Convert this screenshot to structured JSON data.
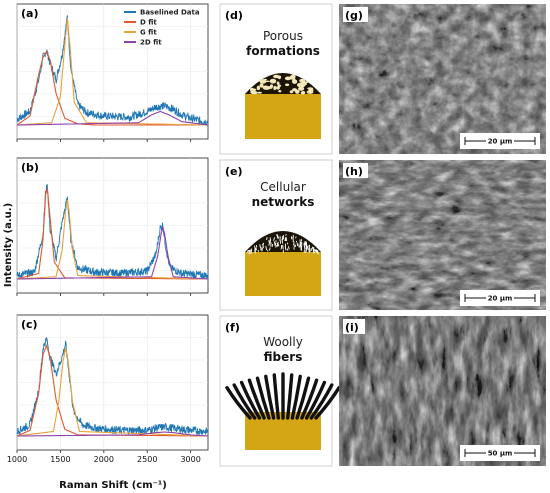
{
  "chart_data": [
    {
      "panel_label": "(a)",
      "type": "line",
      "xlim": [
        1000,
        3200
      ],
      "ticks": [
        "1000",
        "1500",
        "2000",
        "2500",
        "3000"
      ],
      "series": [
        {
          "name": "Baselined Data",
          "color": "#1f77b4",
          "x": [
            1000,
            1150,
            1250,
            1300,
            1340,
            1380,
            1450,
            1520,
            1580,
            1620,
            1700,
            1800,
            2000,
            2300,
            2500,
            2600,
            2700,
            2800,
            2900,
            3000,
            3100,
            3200
          ],
          "y": [
            0.05,
            0.12,
            0.4,
            0.6,
            0.66,
            0.55,
            0.4,
            0.62,
            0.96,
            0.5,
            0.18,
            0.11,
            0.08,
            0.07,
            0.12,
            0.16,
            0.17,
            0.14,
            0.09,
            0.06,
            0.04,
            0.03
          ]
        },
        {
          "name": "D fit",
          "color": "#e4572e",
          "x": [
            1000,
            1150,
            1250,
            1300,
            1340,
            1380,
            1450,
            1550,
            1700,
            1900,
            3200
          ],
          "y": [
            0.0,
            0.08,
            0.45,
            0.6,
            0.65,
            0.58,
            0.28,
            0.06,
            0.01,
            0.0,
            0.0
          ]
        },
        {
          "name": "G fit",
          "color": "#e8a33d",
          "x": [
            1000,
            1400,
            1500,
            1550,
            1580,
            1610,
            1660,
            1800,
            3200
          ],
          "y": [
            0.0,
            0.02,
            0.25,
            0.7,
            0.95,
            0.7,
            0.2,
            0.02,
            0.0
          ]
        },
        {
          "name": "2D fit",
          "color": "#8e44ad",
          "x": [
            1000,
            2400,
            2550,
            2650,
            2750,
            2900,
            3200
          ],
          "y": [
            0.0,
            0.02,
            0.09,
            0.12,
            0.09,
            0.03,
            0.0
          ]
        }
      ]
    },
    {
      "panel_label": "(b)",
      "type": "line",
      "xlim": [
        1000,
        3200
      ],
      "ticks": [
        "1000",
        "1500",
        "2000",
        "2500",
        "3000"
      ],
      "series": [
        {
          "name": "Baselined Data",
          "color": "#1f77b4",
          "x": [
            1000,
            1200,
            1300,
            1330,
            1350,
            1380,
            1450,
            1520,
            1580,
            1620,
            1700,
            1900,
            2200,
            2500,
            2600,
            2650,
            2680,
            2710,
            2760,
            2900,
            3200
          ],
          "y": [
            0.03,
            0.06,
            0.4,
            0.78,
            0.82,
            0.45,
            0.18,
            0.5,
            0.72,
            0.35,
            0.1,
            0.06,
            0.05,
            0.07,
            0.22,
            0.45,
            0.48,
            0.3,
            0.1,
            0.05,
            0.03
          ]
        },
        {
          "name": "D fit",
          "color": "#e4572e",
          "x": [
            1000,
            1250,
            1300,
            1330,
            1350,
            1380,
            1430,
            1550,
            3200
          ],
          "y": [
            0.0,
            0.05,
            0.35,
            0.75,
            0.8,
            0.55,
            0.15,
            0.01,
            0.0
          ]
        },
        {
          "name": "G fit",
          "color": "#e8a33d",
          "x": [
            1000,
            1450,
            1520,
            1560,
            1580,
            1600,
            1640,
            1700,
            3200
          ],
          "y": [
            0.0,
            0.02,
            0.25,
            0.6,
            0.7,
            0.6,
            0.25,
            0.03,
            0.0
          ]
        },
        {
          "name": "2D fit",
          "color": "#8e44ad",
          "x": [
            1000,
            2550,
            2620,
            2660,
            2680,
            2700,
            2740,
            2800,
            3200
          ],
          "y": [
            0.0,
            0.02,
            0.2,
            0.4,
            0.46,
            0.4,
            0.2,
            0.02,
            0.0
          ]
        }
      ]
    },
    {
      "panel_label": "(c)",
      "type": "line",
      "xlim": [
        1000,
        3200
      ],
      "ticks": [
        "1000",
        "1500",
        "2000",
        "2500",
        "3000"
      ],
      "series": [
        {
          "name": "Baselined Data",
          "color": "#1f77b4",
          "x": [
            1000,
            1150,
            1250,
            1300,
            1340,
            1380,
            1450,
            1520,
            1560,
            1600,
            1650,
            1750,
            1900,
            2200,
            2500,
            2600,
            2700,
            2800,
            3000,
            3200
          ],
          "y": [
            0.04,
            0.1,
            0.4,
            0.78,
            0.86,
            0.7,
            0.55,
            0.7,
            0.82,
            0.55,
            0.22,
            0.1,
            0.07,
            0.05,
            0.05,
            0.07,
            0.08,
            0.07,
            0.05,
            0.04
          ]
        },
        {
          "name": "D fit",
          "color": "#e4572e",
          "x": [
            1000,
            1150,
            1250,
            1300,
            1340,
            1380,
            1450,
            1550,
            1700,
            3200
          ],
          "y": [
            0.0,
            0.05,
            0.38,
            0.72,
            0.8,
            0.7,
            0.32,
            0.06,
            0.01,
            0.0
          ]
        },
        {
          "name": "G fit",
          "color": "#e8a33d",
          "x": [
            1000,
            1420,
            1480,
            1530,
            1560,
            1590,
            1640,
            1720,
            3200
          ],
          "y": [
            0.0,
            0.04,
            0.3,
            0.66,
            0.78,
            0.66,
            0.3,
            0.04,
            0.0
          ]
        },
        {
          "name": "2D fit",
          "color": "#8e44ad",
          "x": [
            1000,
            2400,
            2600,
            2700,
            2800,
            3000,
            3200
          ],
          "y": [
            0.0,
            0.01,
            0.03,
            0.035,
            0.03,
            0.01,
            0.0
          ]
        }
      ]
    }
  ],
  "axes": {
    "xlabel": "Raman Shift (cm⁻¹)",
    "ylabel": "Intensity (a.u.)"
  },
  "legend": [
    "Baselined Data",
    "D fit",
    "G fit",
    "2D fit"
  ],
  "morphology": [
    {
      "label": "(d)",
      "line1": "Porous",
      "line2": "formations"
    },
    {
      "label": "(e)",
      "line1": "Cellular",
      "line2": "networks"
    },
    {
      "label": "(f)",
      "line1": "Woolly",
      "line2": "fibers"
    }
  ],
  "sem": [
    {
      "label": "(g)",
      "scale": "20 µm"
    },
    {
      "label": "(h)",
      "scale": "20 µm"
    },
    {
      "label": "(i)",
      "scale": "50 µm"
    }
  ],
  "colors": {
    "substrate": "#d4a514",
    "dark": "#1b1407",
    "sem_bg": "#5a5a5a"
  }
}
